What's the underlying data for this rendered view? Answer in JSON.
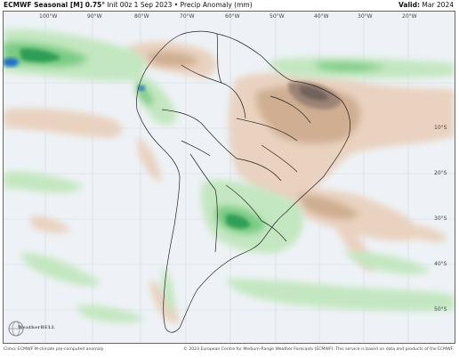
{
  "header": {
    "model": "ECMWF Seasonal [M] 0.75°",
    "info": "Init 00z 1 Sep 2023 • Precip Anomaly (mm)",
    "valid_label": "Valid:",
    "valid_value": "Mar 2024"
  },
  "axes": {
    "lon": [
      "100°W",
      "90°W",
      "80°W",
      "70°W",
      "60°W",
      "50°W",
      "40°W",
      "30°W",
      "20°W"
    ],
    "lat": [
      "10°S",
      "20°S",
      "30°S",
      "40°S",
      "50°S"
    ]
  },
  "colors": {
    "ocean": "#eef2f6",
    "wet_light": "#c3e7c0",
    "wet_mid": "#7ccb84",
    "wet_strong": "#2e9e57",
    "wet_extreme": "#1f6fc4",
    "dry_light": "#e9d2bf",
    "dry_mid": "#cfae92",
    "dry_strong": "#9c8374",
    "dry_extreme": "#6f625c",
    "border": "#222222"
  },
  "footer": {
    "left": "Climo: ECMWF M-climate pre-computed anomaly",
    "right": "© 2023 European Centre for Medium-Range Weather Forecasts (ECMWF). This service is based on data and products of the ECMWF."
  },
  "logo": {
    "text": "WeatherBELL",
    "icon": "globe-icon"
  }
}
